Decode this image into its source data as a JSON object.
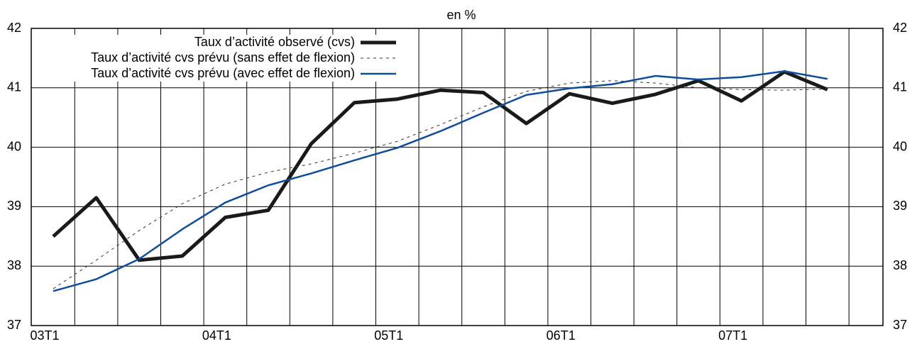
{
  "chart_data": {
    "type": "line",
    "title": "en %",
    "categories": [
      "03T1",
      null,
      null,
      null,
      "04T1",
      null,
      null,
      null,
      "05T1",
      null,
      null,
      null,
      "06T1",
      null,
      null,
      null,
      "07T1",
      null,
      null
    ],
    "ylim": [
      37,
      42
    ],
    "yticks": [
      37,
      38,
      39,
      40,
      41,
      42
    ],
    "grid": true,
    "legend": "top-left",
    "series": [
      {
        "name": "Taux d’activité observé (cvs)",
        "color": "#1a1a1a",
        "style": "thick",
        "values": [
          38.5,
          39.15,
          38.1,
          38.17,
          38.82,
          38.94,
          40.06,
          40.75,
          40.81,
          40.96,
          40.92,
          40.4,
          40.9,
          40.74,
          40.89,
          41.12,
          40.78,
          41.27,
          40.97
        ]
      },
      {
        "name": "Taux d’activité cvs prévu (sans effet de flexion)",
        "color": "#333333",
        "style": "dashed",
        "values": [
          37.62,
          38.1,
          38.6,
          39.05,
          39.38,
          39.58,
          39.72,
          39.9,
          40.1,
          40.38,
          40.68,
          40.94,
          41.08,
          41.12,
          41.08,
          41.0,
          40.97,
          40.96,
          40.98
        ]
      },
      {
        "name": "Taux d’activité cvs prévu (avec effet de flexion)",
        "color": "#0f4c9a",
        "style": "solid",
        "values": [
          37.58,
          37.78,
          38.12,
          38.62,
          39.07,
          39.36,
          39.56,
          39.78,
          39.99,
          40.27,
          40.58,
          40.88,
          40.99,
          41.06,
          41.2,
          41.14,
          41.18,
          41.28,
          41.15
        ]
      }
    ]
  }
}
